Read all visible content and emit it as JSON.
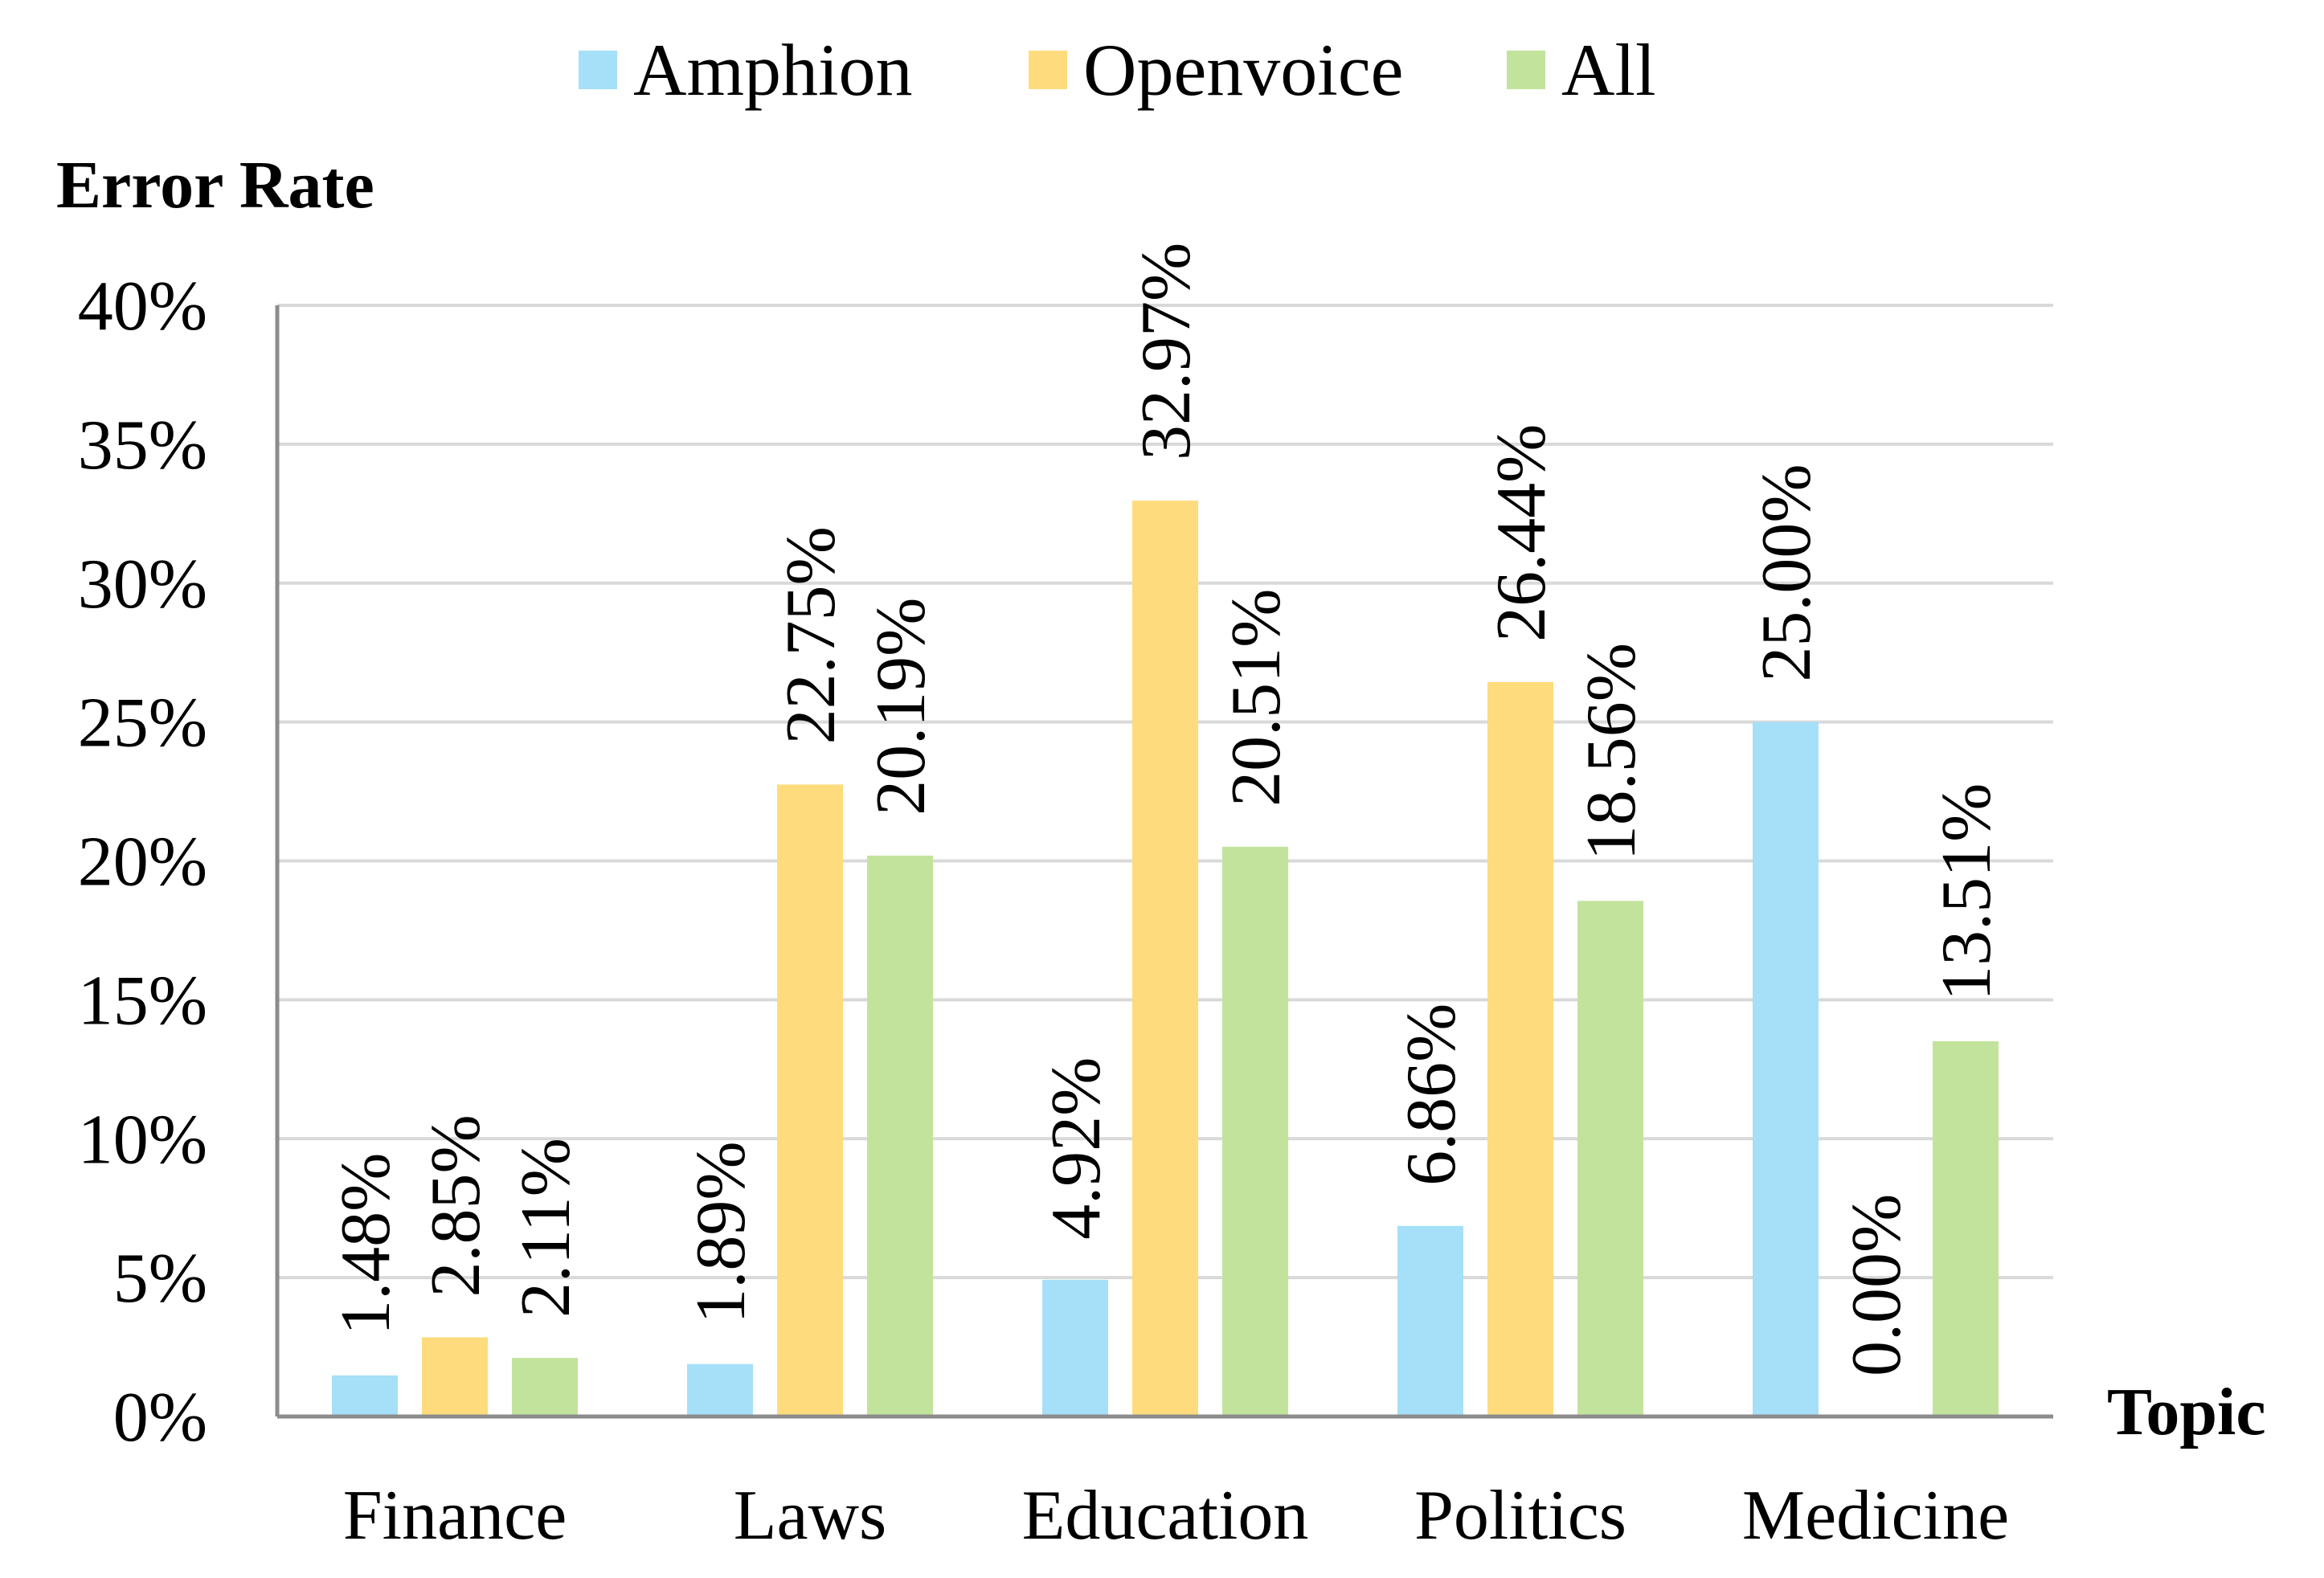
{
  "chart_data": {
    "type": "bar",
    "ylabel": "Error Rate",
    "xlabel": "Topic",
    "categories": [
      "Finance",
      "Laws",
      "Education",
      "Politics",
      "Medicine"
    ],
    "series": [
      {
        "name": "Amphion",
        "color": "#a6dff8",
        "values": [
          1.48,
          1.89,
          4.92,
          6.86,
          25.0
        ],
        "labels": [
          "1.48%",
          "1.89%",
          "4.92%",
          "6.86%",
          "25.00%"
        ]
      },
      {
        "name": "Openvoice",
        "color": "#fedb7d",
        "values": [
          2.85,
          22.75,
          32.97,
          26.44,
          0.0
        ],
        "labels": [
          "2.85%",
          "22.75%",
          "32.97%",
          "26.44%",
          "0.00%"
        ]
      },
      {
        "name": "All",
        "color": "#c2e39c",
        "values": [
          2.11,
          20.19,
          20.51,
          18.56,
          13.51
        ],
        "labels": [
          "2.11%",
          "20.19%",
          "20.51%",
          "18.56%",
          "13.51%"
        ]
      }
    ],
    "ylim": [
      0,
      40
    ],
    "yticks": [
      "0%",
      "5%",
      "10%",
      "15%",
      "20%",
      "25%",
      "30%",
      "35%",
      "40%"
    ],
    "grid": true,
    "legend_position": "top-center"
  }
}
